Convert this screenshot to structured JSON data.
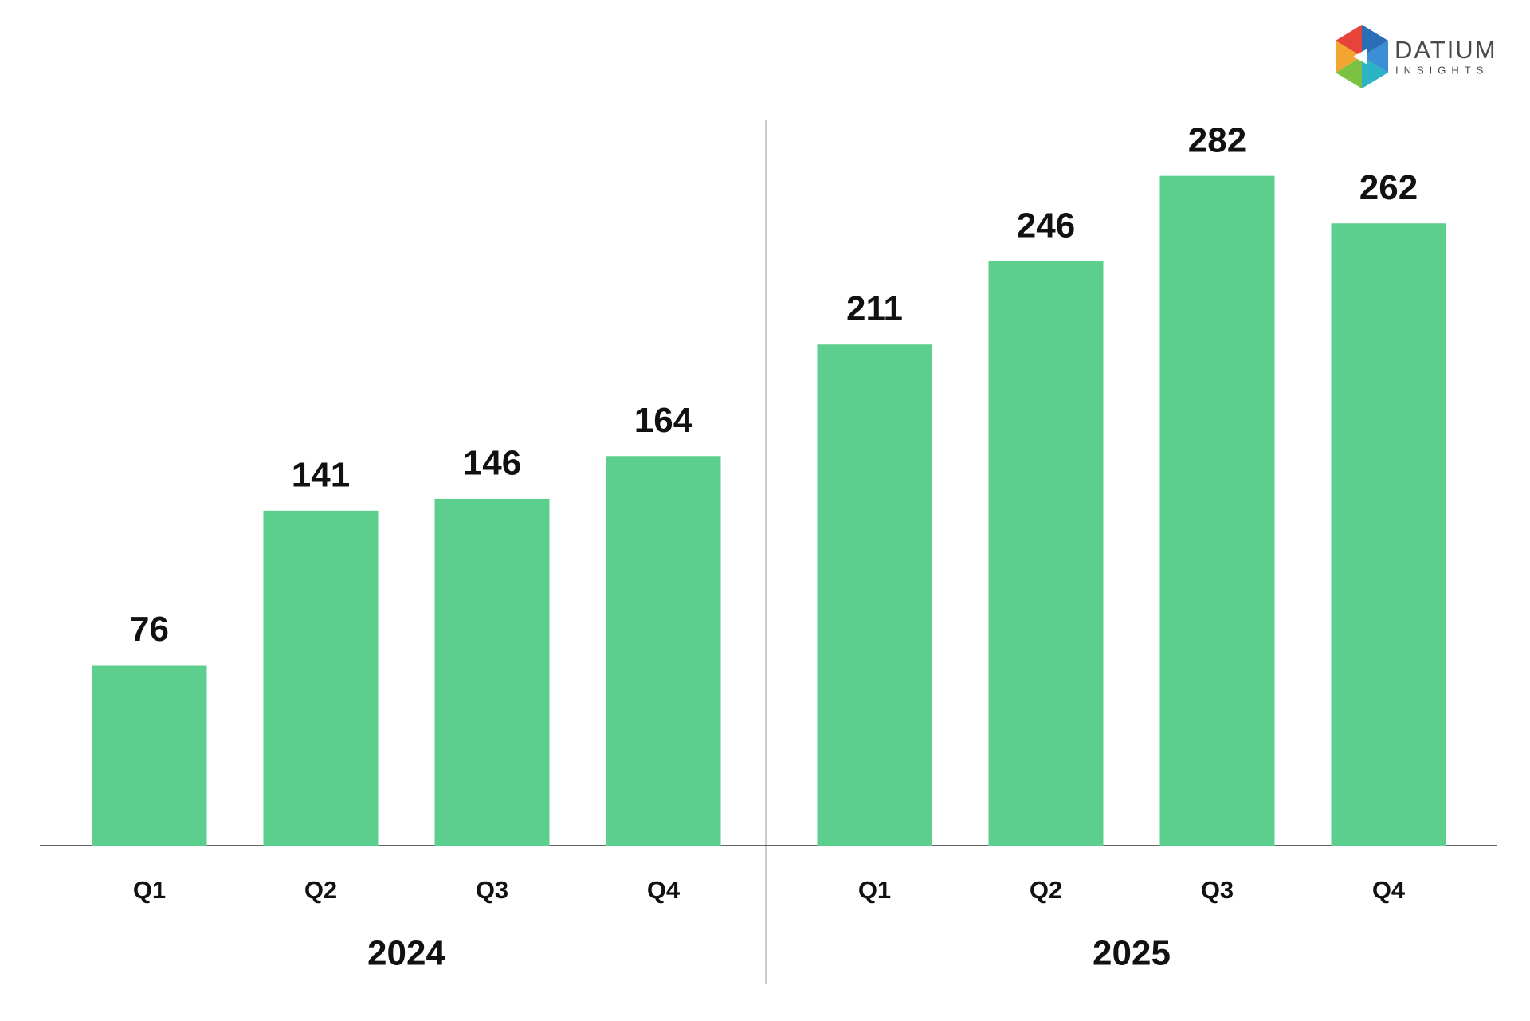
{
  "logo": {
    "name": "DATIUM",
    "tagline": "INSIGHTS"
  },
  "chart_data": {
    "type": "bar",
    "color": "#5ccf8e",
    "groups": [
      {
        "label": "2024",
        "categories": [
          "Q1",
          "Q2",
          "Q3",
          "Q4"
        ],
        "values": [
          76,
          141,
          146,
          164
        ]
      },
      {
        "label": "2025",
        "categories": [
          "Q1",
          "Q2",
          "Q3",
          "Q4"
        ],
        "values": [
          211,
          246,
          282,
          262
        ]
      }
    ]
  }
}
